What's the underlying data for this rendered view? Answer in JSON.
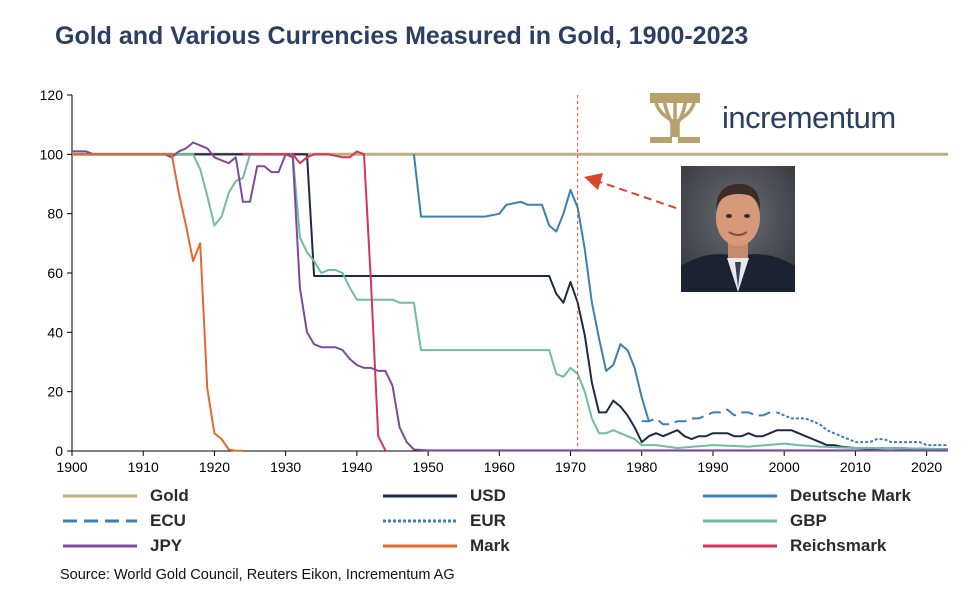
{
  "title": "Gold and Various Currencies Measured in Gold, 1900-2023",
  "source": "Source: World Gold Council, Reuters Eikon, Incrementum AG",
  "logo": {
    "text": "incrementum",
    "icon": "tree-icon",
    "color": "#b8a16a"
  },
  "photo": {
    "icon": "portrait-photo"
  },
  "annotation": {
    "vline_x": 1971,
    "arrow": "arrow-pointing-to-1971-line",
    "color": "#d9472b"
  },
  "chart_data": {
    "type": "line",
    "xlim": [
      1900,
      2023
    ],
    "ylim": [
      0,
      120
    ],
    "x_ticks": [
      1900,
      1910,
      1920,
      1930,
      1940,
      1950,
      1960,
      1970,
      1980,
      1990,
      2000,
      2010,
      2020
    ],
    "y_ticks": [
      0,
      20,
      40,
      60,
      80,
      100,
      120
    ],
    "legend_position": "bottom",
    "series": [
      {
        "name": "Gold",
        "color": "#bfae7e",
        "dash": "solid",
        "width": 3,
        "points": [
          [
            1900,
            100
          ],
          [
            2023,
            100
          ]
        ]
      },
      {
        "name": "USD",
        "color": "#1f2a4a",
        "dash": "solid",
        "width": 2,
        "points": [
          [
            1900,
            100
          ],
          [
            1933,
            100
          ],
          [
            1934,
            59
          ],
          [
            1967,
            59
          ],
          [
            1968,
            53
          ],
          [
            1969,
            50
          ],
          [
            1970,
            57
          ],
          [
            1971,
            50
          ],
          [
            1972,
            39
          ],
          [
            1973,
            23
          ],
          [
            1974,
            13
          ],
          [
            1975,
            13
          ],
          [
            1976,
            17
          ],
          [
            1977,
            15
          ],
          [
            1978,
            12
          ],
          [
            1979,
            8
          ],
          [
            1980,
            3
          ],
          [
            1981,
            5
          ],
          [
            1982,
            6
          ],
          [
            1983,
            5
          ],
          [
            1984,
            6
          ],
          [
            1985,
            7
          ],
          [
            1986,
            5
          ],
          [
            1987,
            4
          ],
          [
            1988,
            5
          ],
          [
            1989,
            5
          ],
          [
            1990,
            6
          ],
          [
            1991,
            6
          ],
          [
            1992,
            6
          ],
          [
            1993,
            5
          ],
          [
            1994,
            5
          ],
          [
            1995,
            6
          ],
          [
            1996,
            5
          ],
          [
            1997,
            5
          ],
          [
            1998,
            6
          ],
          [
            1999,
            7
          ],
          [
            2000,
            7
          ],
          [
            2001,
            7
          ],
          [
            2002,
            6
          ],
          [
            2003,
            5
          ],
          [
            2004,
            4
          ],
          [
            2005,
            3
          ],
          [
            2006,
            2
          ],
          [
            2007,
            2
          ],
          [
            2008,
            1.5
          ],
          [
            2010,
            1
          ],
          [
            2012,
            0.8
          ],
          [
            2015,
            1
          ],
          [
            2020,
            0.7
          ],
          [
            2023,
            0.6
          ]
        ]
      },
      {
        "name": "Deutsche Mark",
        "color": "#3b7fb5",
        "dash": "solid",
        "width": 2,
        "points": [
          [
            1948,
            100
          ],
          [
            1949,
            79
          ],
          [
            1958,
            79
          ],
          [
            1960,
            80
          ],
          [
            1961,
            83
          ],
          [
            1963,
            84
          ],
          [
            1964,
            83
          ],
          [
            1966,
            83
          ],
          [
            1967,
            76
          ],
          [
            1968,
            74
          ],
          [
            1969,
            80
          ],
          [
            1970,
            88
          ],
          [
            1971,
            82
          ],
          [
            1972,
            68
          ],
          [
            1973,
            50
          ],
          [
            1974,
            38
          ],
          [
            1975,
            27
          ],
          [
            1976,
            29
          ],
          [
            1977,
            36
          ],
          [
            1978,
            34
          ],
          [
            1979,
            28
          ],
          [
            1980,
            18
          ],
          [
            1981,
            10
          ]
        ]
      },
      {
        "name": "ECU",
        "color": "#3b7fb5",
        "dash": "longdash",
        "width": 2,
        "points": [
          [
            1980,
            10
          ],
          [
            1981,
            10
          ],
          [
            1982,
            11
          ],
          [
            1983,
            9
          ],
          [
            1984,
            9
          ],
          [
            1985,
            10
          ],
          [
            1986,
            10
          ],
          [
            1987,
            11
          ],
          [
            1988,
            11
          ],
          [
            1989,
            12
          ],
          [
            1990,
            13
          ],
          [
            1991,
            13
          ],
          [
            1992,
            14
          ],
          [
            1993,
            12
          ],
          [
            1994,
            13
          ],
          [
            1995,
            13
          ],
          [
            1996,
            12
          ],
          [
            1997,
            12
          ],
          [
            1998,
            13
          ],
          [
            1999,
            13
          ]
        ]
      },
      {
        "name": "EUR",
        "color": "#3b7fb5",
        "dash": "dotted",
        "width": 2,
        "points": [
          [
            1999,
            13
          ],
          [
            2000,
            12
          ],
          [
            2001,
            11
          ],
          [
            2002,
            11
          ],
          [
            2003,
            11
          ],
          [
            2004,
            10
          ],
          [
            2005,
            9
          ],
          [
            2006,
            7
          ],
          [
            2007,
            6
          ],
          [
            2008,
            5
          ],
          [
            2009,
            4
          ],
          [
            2010,
            3
          ],
          [
            2011,
            3
          ],
          [
            2012,
            3
          ],
          [
            2013,
            4
          ],
          [
            2014,
            4
          ],
          [
            2015,
            3
          ],
          [
            2017,
            3
          ],
          [
            2019,
            3
          ],
          [
            2020,
            2
          ],
          [
            2021,
            2
          ],
          [
            2023,
            2
          ]
        ]
      },
      {
        "name": "GBP",
        "color": "#6fbd9a",
        "dash": "solid",
        "width": 2,
        "points": [
          [
            1900,
            100
          ],
          [
            1917,
            100
          ],
          [
            1918,
            95
          ],
          [
            1919,
            86
          ],
          [
            1920,
            76
          ],
          [
            1921,
            79
          ],
          [
            1922,
            87
          ],
          [
            1923,
            91
          ],
          [
            1924,
            92
          ],
          [
            1925,
            100
          ],
          [
            1931,
            100
          ],
          [
            1932,
            72
          ],
          [
            1933,
            67
          ],
          [
            1934,
            64
          ],
          [
            1935,
            60
          ],
          [
            1936,
            61
          ],
          [
            1937,
            61
          ],
          [
            1938,
            60
          ],
          [
            1939,
            55
          ],
          [
            1940,
            51
          ],
          [
            1945,
            51
          ],
          [
            1946,
            50
          ],
          [
            1948,
            50
          ],
          [
            1949,
            34
          ],
          [
            1967,
            34
          ],
          [
            1968,
            26
          ],
          [
            1969,
            25
          ],
          [
            1970,
            28
          ],
          [
            1971,
            26
          ],
          [
            1972,
            20
          ],
          [
            1973,
            11
          ],
          [
            1974,
            6
          ],
          [
            1975,
            6
          ],
          [
            1976,
            7
          ],
          [
            1977,
            6
          ],
          [
            1978,
            5
          ],
          [
            1979,
            4
          ],
          [
            1980,
            2
          ],
          [
            1982,
            2
          ],
          [
            1985,
            1
          ],
          [
            1990,
            2
          ],
          [
            1995,
            1.5
          ],
          [
            2000,
            2.5
          ],
          [
            2002,
            2
          ],
          [
            2005,
            1.5
          ],
          [
            2010,
            1
          ],
          [
            2015,
            1
          ],
          [
            2023,
            0.6
          ]
        ]
      },
      {
        "name": "JPY",
        "color": "#7e4a9e",
        "dash": "solid",
        "width": 2,
        "points": [
          [
            1900,
            101
          ],
          [
            1902,
            101
          ],
          [
            1903,
            100
          ],
          [
            1910,
            100
          ],
          [
            1913,
            100
          ],
          [
            1914,
            99
          ],
          [
            1915,
            101
          ],
          [
            1916,
            102
          ],
          [
            1917,
            104
          ],
          [
            1918,
            103
          ],
          [
            1919,
            102
          ],
          [
            1920,
            99
          ],
          [
            1921,
            98
          ],
          [
            1922,
            97
          ],
          [
            1923,
            99
          ],
          [
            1924,
            84
          ],
          [
            1925,
            84
          ],
          [
            1926,
            96
          ],
          [
            1927,
            96
          ],
          [
            1928,
            94
          ],
          [
            1929,
            94
          ],
          [
            1930,
            100
          ],
          [
            1931,
            99
          ],
          [
            1932,
            55
          ],
          [
            1933,
            40
          ],
          [
            1934,
            36
          ],
          [
            1935,
            35
          ],
          [
            1937,
            35
          ],
          [
            1938,
            34
          ],
          [
            1939,
            31
          ],
          [
            1940,
            29
          ],
          [
            1941,
            28
          ],
          [
            1942,
            28
          ],
          [
            1943,
            27
          ],
          [
            1944,
            27
          ],
          [
            1945,
            22
          ],
          [
            1946,
            8
          ],
          [
            1947,
            3
          ],
          [
            1948,
            0.5
          ],
          [
            1950,
            0.2
          ],
          [
            2023,
            0.2
          ]
        ]
      },
      {
        "name": "Mark",
        "color": "#e26a2e",
        "dash": "solid",
        "width": 2,
        "points": [
          [
            1900,
            100
          ],
          [
            1914,
            100
          ],
          [
            1915,
            87
          ],
          [
            1916,
            76
          ],
          [
            1917,
            64
          ],
          [
            1918,
            70
          ],
          [
            1919,
            21
          ],
          [
            1920,
            6
          ],
          [
            1921,
            4
          ],
          [
            1922,
            0.5
          ],
          [
            1923,
            0.1
          ],
          [
            1924,
            0.1
          ]
        ]
      },
      {
        "name": "Reichsmark",
        "color": "#d6345a",
        "dash": "solid",
        "width": 2,
        "points": [
          [
            1924,
            100
          ],
          [
            1931,
            100
          ],
          [
            1932,
            97
          ],
          [
            1933,
            99
          ],
          [
            1934,
            100
          ],
          [
            1936,
            100
          ],
          [
            1938,
            99
          ],
          [
            1939,
            99
          ],
          [
            1940,
            101
          ],
          [
            1941,
            100
          ],
          [
            1942,
            56
          ],
          [
            1943,
            5
          ],
          [
            1944,
            0.2
          ]
        ]
      }
    ]
  }
}
